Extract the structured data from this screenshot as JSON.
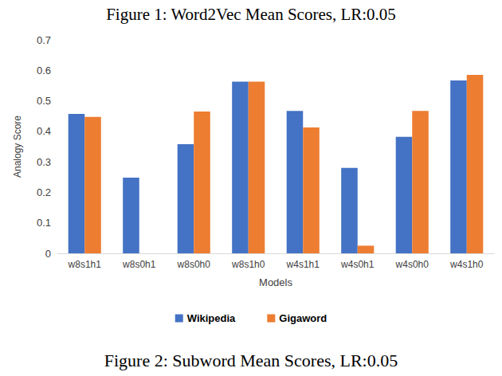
{
  "chart_data": {
    "type": "bar",
    "title": "Figure 1: Word2Vec Mean Scores, LR:0.05",
    "annotations": [
      "Figure 2: Subword Mean Scores, LR:0.05"
    ],
    "x_label": "Models",
    "y_label": "Analogy Score",
    "categories": [
      "w8s1h1",
      "w8s0h1",
      "w8s0h0",
      "w8s1h0",
      "w4s1h1",
      "w4s0h1",
      "w4s0h0",
      "w4s1h0"
    ],
    "series": [
      {
        "name": "Wikipedia",
        "color": "#4472c4",
        "values": [
          0.457,
          0.248,
          0.358,
          0.563,
          0.467,
          0.28,
          0.382,
          0.567
        ]
      },
      {
        "name": "Gigaword",
        "color": "#ed7d31",
        "values": [
          0.447,
          0,
          0.465,
          0.563,
          0.413,
          0.025,
          0.467,
          0.585
        ]
      }
    ],
    "ylim": [
      0,
      0.7
    ],
    "yticks": [
      0,
      0.1,
      0.2,
      0.3,
      0.4,
      0.5,
      0.6,
      0.7
    ],
    "grid": false,
    "legend": "bottom"
  }
}
